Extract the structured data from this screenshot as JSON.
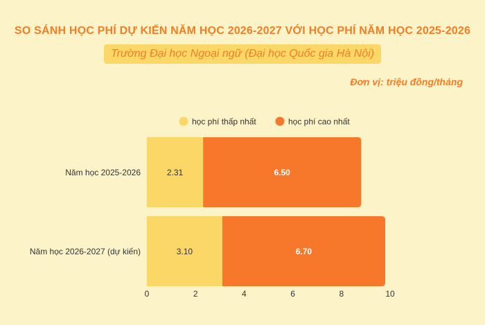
{
  "header": {
    "title": "SO SÁNH HỌC PHÍ DỰ KIẾN NĂM HỌC 2026-2027 VỚI HỌC PHÍ NĂM HỌC 2025-2026",
    "subtitle": "Trường Đại học Ngoại ngữ (Đại học Quốc gia Hà Nội)",
    "unit": "Đơn vị: triệu đồng/tháng"
  },
  "colors": {
    "low": "#fbd767",
    "high": "#f7782a",
    "accent": "#f07e26",
    "background": "#fdf3c8"
  },
  "chart_data": {
    "type": "bar",
    "orientation": "horizontal",
    "stacked": true,
    "categories": [
      "Năm học 2025-2026",
      "Năm học 2026-2027 (dự kiến)"
    ],
    "series": [
      {
        "name": "học phí thấp nhất",
        "values": [
          2.31,
          3.1
        ],
        "labels": [
          "2.31",
          "3.10"
        ]
      },
      {
        "name": "học phí cao nhất",
        "values": [
          6.5,
          6.7
        ],
        "labels": [
          "6.50",
          "6.70"
        ]
      }
    ],
    "xlim": [
      0,
      10
    ],
    "xticks": [
      0,
      2,
      4,
      6,
      8,
      10
    ],
    "legend_position": "top",
    "grid": false
  }
}
